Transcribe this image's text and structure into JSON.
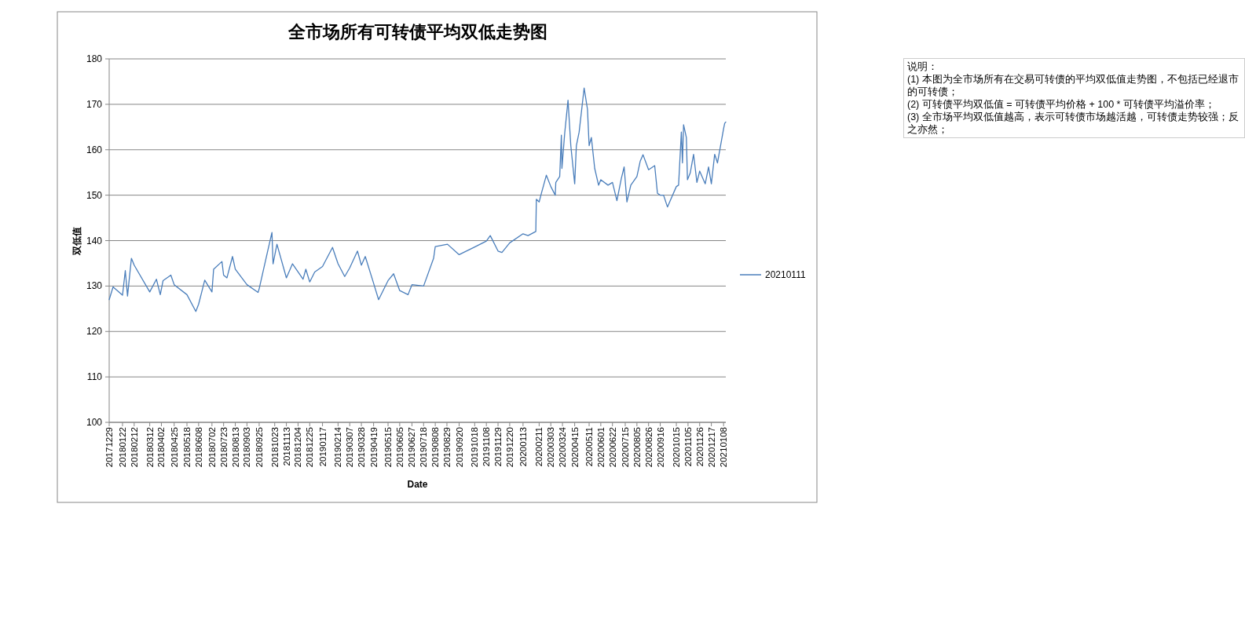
{
  "chart_data": {
    "type": "line",
    "title": "全市场所有可转债平均双低走势图",
    "xlabel": "Date",
    "ylabel": "双低值",
    "annotations": [
      "说明：",
      "(1) 本图为全市场所有在交易可转债的平均双低值走势图，不包括已经退市的可转债；",
      "(2) 可转债平均双低值 = 可转债平均价格 + 100 * 可转债平均溢价率；",
      "(3) 全市场平均双低值越高，表示可转债市场越活越，可转债走势较强；反之亦然；"
    ],
    "x": [
      "2017-12-29",
      "2018-01-05",
      "2018-01-22",
      "2018-01-27",
      "2018-01-31",
      "2018-02-07",
      "2018-02-12",
      "2018-03-12",
      "2018-03-24",
      "2018-03-31",
      "2018-04-05",
      "2018-04-19",
      "2018-04-25",
      "2018-05-18",
      "2018-06-03",
      "2018-06-08",
      "2018-06-19",
      "2018-07-02",
      "2018-07-05",
      "2018-07-20",
      "2018-07-23",
      "2018-07-29",
      "2018-08-08",
      "2018-08-13",
      "2018-09-03",
      "2018-09-23",
      "2018-09-25",
      "2018-10-10",
      "2018-10-18",
      "2018-10-20",
      "2018-10-27",
      "2018-11-13",
      "2018-11-24",
      "2018-12-04",
      "2018-12-13",
      "2018-12-18",
      "2018-12-25",
      "2019-01-03",
      "2019-01-17",
      "2019-02-04",
      "2019-02-14",
      "2019-02-26",
      "2019-03-07",
      "2019-03-21",
      "2019-03-28",
      "2019-04-04",
      "2019-04-19",
      "2019-04-28",
      "2019-05-15",
      "2019-05-25",
      "2019-06-05",
      "2019-06-20",
      "2019-06-27",
      "2019-07-18",
      "2019-08-05",
      "2019-08-08",
      "2019-08-30",
      "2019-09-20",
      "2019-10-18",
      "2019-11-08",
      "2019-11-15",
      "2019-11-29",
      "2019-12-06",
      "2019-12-20",
      "2020-01-13",
      "2020-01-22",
      "2020-02-05",
      "2020-02-06",
      "2020-02-11",
      "2020-02-15",
      "2020-02-24",
      "2020-03-03",
      "2020-03-11",
      "2020-03-12",
      "2020-03-19",
      "2020-03-22",
      "2020-03-23",
      "2020-03-28",
      "2020-04-03",
      "2020-04-08",
      "2020-04-15",
      "2020-04-18",
      "2020-04-23",
      "2020-05-02",
      "2020-05-08",
      "2020-05-11",
      "2020-05-15",
      "2020-05-21",
      "2020-05-28",
      "2020-06-01",
      "2020-06-14",
      "2020-06-22",
      "2020-06-30",
      "2020-07-08",
      "2020-07-13",
      "2020-07-18",
      "2020-07-25",
      "2020-08-05",
      "2020-08-11",
      "2020-08-16",
      "2020-08-26",
      "2020-09-06",
      "2020-09-11",
      "2020-09-16",
      "2020-09-22",
      "2020-09-29",
      "2020-10-15",
      "2020-10-19",
      "2020-10-24",
      "2020-10-26",
      "2020-10-28",
      "2020-11-02",
      "2020-11-04",
      "2020-11-09",
      "2020-11-15",
      "2020-11-21",
      "2020-11-26",
      "2020-12-06",
      "2020-12-12",
      "2020-12-17",
      "2020-12-23",
      "2020-12-28",
      "2021-01-08",
      "2021-01-10",
      "2021-01-12"
    ],
    "series": [
      {
        "name": "20210111",
        "color": "#4a7ebb",
        "values": [
          127,
          129.8,
          128,
          133.4,
          127.8,
          136.1,
          134.6,
          128.7,
          131.5,
          128.1,
          131.2,
          132.4,
          130.3,
          128.1,
          124.4,
          126,
          131.3,
          128.7,
          133.7,
          135.4,
          132.4,
          131.8,
          136.5,
          133.7,
          130.3,
          128.6,
          129.4,
          137.5,
          141.8,
          134.9,
          139.2,
          131.8,
          134.9,
          133.1,
          131.5,
          133.7,
          130.9,
          133.1,
          134.3,
          138.5,
          134.9,
          132.1,
          134,
          137.7,
          134.6,
          136.5,
          130.6,
          127,
          131.2,
          132.7,
          129,
          128.1,
          130.3,
          130,
          136.1,
          138.7,
          139.2,
          136.9,
          138.6,
          139.9,
          141.1,
          137.7,
          137.4,
          139.5,
          141.5,
          141.1,
          142,
          149.1,
          148.5,
          150.4,
          154.4,
          151.9,
          150,
          152.8,
          154.1,
          163.2,
          155.9,
          163.6,
          170.9,
          160.9,
          152.5,
          160.9,
          163.9,
          173.6,
          168.9,
          160.9,
          162.7,
          155.9,
          152.2,
          153.4,
          152.2,
          152.8,
          148.8,
          153.7,
          156.2,
          148.5,
          152.2,
          154.1,
          157.5,
          158.9,
          155.6,
          156.5,
          150.4,
          150,
          150,
          147.4,
          151.9,
          152.2,
          163.9,
          157.1,
          165.5,
          162.7,
          153.4,
          154.9,
          159,
          152.8,
          155.3,
          152.5,
          156.2,
          152.5,
          159,
          157.1,
          164.6,
          165.8,
          166.1
        ]
      }
    ],
    "xlim": [
      "2017-12-29",
      "2021-01-12"
    ],
    "xticks": [
      {
        "value": "2017-12-29",
        "label": "20171229"
      },
      {
        "value": "2018-01-22",
        "label": "20180122"
      },
      {
        "value": "2018-02-12",
        "label": "20180212"
      },
      {
        "value": "2018-03-12",
        "label": "20180312"
      },
      {
        "value": "2018-04-02",
        "label": "20180402"
      },
      {
        "value": "2018-04-25",
        "label": "20180425"
      },
      {
        "value": "2018-05-18",
        "label": "20180518"
      },
      {
        "value": "2018-06-08",
        "label": "20180608"
      },
      {
        "value": "2018-07-02",
        "label": "20180702"
      },
      {
        "value": "2018-07-23",
        "label": "20180723"
      },
      {
        "value": "2018-08-13",
        "label": "20180813"
      },
      {
        "value": "2018-09-03",
        "label": "20180903"
      },
      {
        "value": "2018-09-25",
        "label": "20180925"
      },
      {
        "value": "2018-10-23",
        "label": "20181023"
      },
      {
        "value": "2018-11-13",
        "label": "20181113"
      },
      {
        "value": "2018-12-04",
        "label": "20181204"
      },
      {
        "value": "2018-12-25",
        "label": "20181225"
      },
      {
        "value": "2019-01-17",
        "label": "20190117"
      },
      {
        "value": "2019-02-14",
        "label": "20190214"
      },
      {
        "value": "2019-03-07",
        "label": "20190307"
      },
      {
        "value": "2019-03-28",
        "label": "20190328"
      },
      {
        "value": "2019-04-19",
        "label": "20190419"
      },
      {
        "value": "2019-05-15",
        "label": "20190515"
      },
      {
        "value": "2019-06-05",
        "label": "20190605"
      },
      {
        "value": "2019-06-27",
        "label": "20190627"
      },
      {
        "value": "2019-07-18",
        "label": "20190718"
      },
      {
        "value": "2019-08-08",
        "label": "20190808"
      },
      {
        "value": "2019-08-29",
        "label": "20190829"
      },
      {
        "value": "2019-09-20",
        "label": "20190920"
      },
      {
        "value": "2019-10-18",
        "label": "20191018"
      },
      {
        "value": "2019-11-08",
        "label": "20191108"
      },
      {
        "value": "2019-11-29",
        "label": "20191129"
      },
      {
        "value": "2019-12-20",
        "label": "20191220"
      },
      {
        "value": "2020-01-13",
        "label": "20200113"
      },
      {
        "value": "2020-02-11",
        "label": "20200211"
      },
      {
        "value": "2020-03-03",
        "label": "20200303"
      },
      {
        "value": "2020-03-24",
        "label": "20200324"
      },
      {
        "value": "2020-04-15",
        "label": "20200415"
      },
      {
        "value": "2020-05-11",
        "label": "20200511"
      },
      {
        "value": "2020-06-01",
        "label": "20200601"
      },
      {
        "value": "2020-06-22",
        "label": "20200622"
      },
      {
        "value": "2020-07-15",
        "label": "20200715"
      },
      {
        "value": "2020-08-05",
        "label": "20200805"
      },
      {
        "value": "2020-08-26",
        "label": "20200826"
      },
      {
        "value": "2020-09-16",
        "label": "20200916"
      },
      {
        "value": "2020-10-15",
        "label": "20201015"
      },
      {
        "value": "2020-11-05",
        "label": "20201105"
      },
      {
        "value": "2020-11-26",
        "label": "20201126"
      },
      {
        "value": "2020-12-17",
        "label": "20201217"
      },
      {
        "value": "2021-01-08",
        "label": "20210108"
      }
    ],
    "ylim": [
      100,
      180
    ],
    "yticks": [
      100,
      110,
      120,
      130,
      140,
      150,
      160,
      170,
      180
    ],
    "grid": "y",
    "legend": "right",
    "marker": "none",
    "line_style": "solid"
  }
}
